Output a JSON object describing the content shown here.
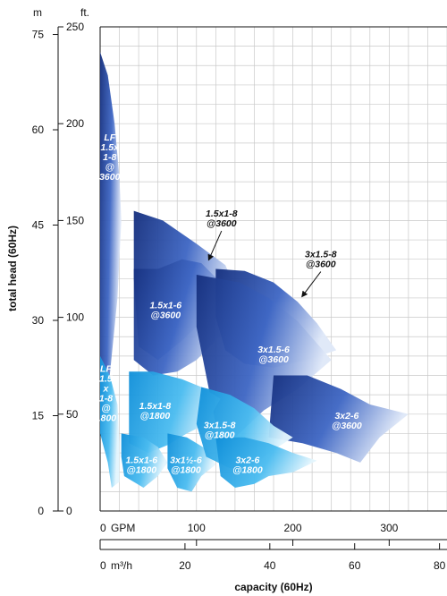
{
  "chart_data": {
    "type": "area",
    "title": "",
    "xlabel": "capacity (60Hz)",
    "ylabel": "total head (60Hz)",
    "left_axis_unit": "m",
    "right_axis_unit": "ft.",
    "flow_axis_unit_gpm": "GPM",
    "flow_axis_unit_m3h": "m³/h",
    "grid": true,
    "y_ft_ticks": [
      "0",
      "50",
      "100",
      "150",
      "200",
      "250"
    ],
    "y_m_ticks": [
      "0",
      "15",
      "30",
      "45",
      "60",
      "75"
    ],
    "x_gpm_ticks": [
      "0",
      "100",
      "200",
      "300"
    ],
    "x_m3h_ticks": [
      "0",
      "20",
      "40",
      "60",
      "80"
    ],
    "xlim_gpm": [
      0,
      360
    ],
    "ylim_ft": [
      0,
      250
    ],
    "colors": {
      "speed_3600": "#1a3a8f",
      "speed_1800": "#1aa3e8",
      "grid": "#c9c9c9"
    },
    "regions": [
      {
        "label": "LF 1.5x 1-8 @ 3600",
        "speed": 3600,
        "polygon": [
          [
            0,
            237
          ],
          [
            8,
            225
          ],
          [
            15,
            200
          ],
          [
            20,
            172
          ],
          [
            22,
            150
          ],
          [
            18,
            110
          ],
          [
            8,
            60
          ],
          [
            2,
            50
          ],
          [
            0,
            50
          ]
        ]
      },
      {
        "label": "1.5x1-8 @3600",
        "speed": 3600,
        "polygon": [
          [
            35,
            155
          ],
          [
            65,
            150
          ],
          [
            100,
            138
          ],
          [
            130,
            127
          ],
          [
            140,
            115
          ],
          [
            110,
            100
          ],
          [
            85,
            88
          ],
          [
            60,
            78
          ],
          [
            40,
            85
          ],
          [
            35,
            120
          ]
        ]
      },
      {
        "label": "1.5x1-6 @3600",
        "speed": 3600,
        "polygon": [
          [
            35,
            125
          ],
          [
            60,
            125
          ],
          [
            85,
            130
          ],
          [
            105,
            128
          ],
          [
            125,
            118
          ],
          [
            140,
            100
          ],
          [
            120,
            88
          ],
          [
            100,
            78
          ],
          [
            80,
            72
          ],
          [
            55,
            70
          ],
          [
            35,
            78
          ]
        ]
      },
      {
        "label": "3x1.5-8 @3600",
        "speed": 3600,
        "polygon": [
          [
            120,
            125
          ],
          [
            150,
            124
          ],
          [
            180,
            118
          ],
          [
            205,
            108
          ],
          [
            225,
            97
          ],
          [
            245,
            83
          ],
          [
            215,
            78
          ],
          [
            180,
            74
          ],
          [
            150,
            76
          ],
          [
            130,
            83
          ],
          [
            120,
            100
          ]
        ]
      },
      {
        "label": "3x1.5-6 @3600",
        "speed": 3600,
        "polygon": [
          [
            100,
            122
          ],
          [
            145,
            118
          ],
          [
            175,
            110
          ],
          [
            205,
            98
          ],
          [
            240,
            78
          ],
          [
            205,
            63
          ],
          [
            170,
            52
          ],
          [
            140,
            38
          ],
          [
            120,
            45
          ],
          [
            110,
            70
          ],
          [
            100,
            95
          ]
        ]
      },
      {
        "label": "3x2-6 @3600",
        "speed": 3600,
        "polygon": [
          [
            180,
            70
          ],
          [
            215,
            70
          ],
          [
            250,
            63
          ],
          [
            280,
            55
          ],
          [
            320,
            50
          ],
          [
            290,
            38
          ],
          [
            270,
            25
          ],
          [
            245,
            30
          ],
          [
            210,
            35
          ],
          [
            175,
            38
          ]
        ]
      },
      {
        "label": "LF 1.5 x 1-8 @ 1800",
        "speed": 1800,
        "polygon": [
          [
            0,
            80
          ],
          [
            10,
            70
          ],
          [
            18,
            55
          ],
          [
            20,
            35
          ],
          [
            20,
            15
          ],
          [
            12,
            12
          ],
          [
            8,
            25
          ],
          [
            0,
            40
          ]
        ]
      },
      {
        "label": "1.5x1-8 @1800",
        "speed": 1800,
        "polygon": [
          [
            30,
            72
          ],
          [
            55,
            72
          ],
          [
            85,
            68
          ],
          [
            105,
            64
          ],
          [
            125,
            58
          ],
          [
            110,
            45
          ],
          [
            90,
            40
          ],
          [
            70,
            34
          ],
          [
            50,
            30
          ],
          [
            30,
            35
          ]
        ]
      },
      {
        "label": "1.5x1-6 @1800",
        "speed": 1800,
        "polygon": [
          [
            22,
            40
          ],
          [
            45,
            38
          ],
          [
            60,
            33
          ],
          [
            70,
            25
          ],
          [
            60,
            18
          ],
          [
            45,
            12
          ],
          [
            25,
            18
          ],
          [
            22,
            28
          ]
        ]
      },
      {
        "label": "3x1½-6 @1800",
        "speed": 1800,
        "polygon": [
          [
            70,
            40
          ],
          [
            90,
            38
          ],
          [
            110,
            32
          ],
          [
            120,
            24
          ],
          [
            105,
            18
          ],
          [
            95,
            10
          ],
          [
            80,
            12
          ],
          [
            70,
            22
          ]
        ]
      },
      {
        "label": "3x1.5-8 @1800",
        "speed": 1800,
        "polygon": [
          [
            105,
            64
          ],
          [
            135,
            60
          ],
          [
            160,
            53
          ],
          [
            180,
            44
          ],
          [
            200,
            38
          ],
          [
            175,
            30
          ],
          [
            160,
            24
          ],
          [
            135,
            22
          ],
          [
            110,
            28
          ],
          [
            100,
            45
          ]
        ]
      },
      {
        "label": "3x2-6 @1800",
        "speed": 1800,
        "polygon": [
          [
            120,
            38
          ],
          [
            150,
            38
          ],
          [
            175,
            35
          ],
          [
            200,
            30
          ],
          [
            225,
            26
          ],
          [
            200,
            20
          ],
          [
            175,
            18
          ],
          [
            160,
            14
          ],
          [
            140,
            12
          ],
          [
            125,
            18
          ]
        ]
      }
    ],
    "region_labels": [
      {
        "lines": [
          "LF",
          "1.5x",
          "1-8",
          "@",
          "3600"
        ],
        "at": [
          10,
          183
        ]
      },
      {
        "lines": [
          "1.5x1-6",
          "@3600"
        ],
        "at": [
          68,
          104
        ]
      },
      {
        "lines": [
          "3x1.5-6",
          "@3600"
        ],
        "at": [
          180,
          81
        ]
      },
      {
        "lines": [
          "3x2-6",
          "@3600"
        ],
        "at": [
          256,
          47
        ]
      },
      {
        "lines": [
          "LF",
          "1.5",
          "x",
          "1-8",
          "@",
          "1800"
        ],
        "at": [
          6,
          61
        ]
      },
      {
        "lines": [
          "1.5x1-8",
          "@1800"
        ],
        "at": [
          57,
          52
        ]
      },
      {
        "lines": [
          "3x1.5-8",
          "@1800"
        ],
        "at": [
          124,
          42
        ]
      },
      {
        "lines": [
          "1.5x1-6",
          "@1800"
        ],
        "at": [
          43,
          24
        ]
      },
      {
        "lines": [
          "3x1½-6",
          "@1800"
        ],
        "at": [
          89,
          24
        ]
      },
      {
        "lines": [
          "3x2-6",
          "@1800"
        ],
        "at": [
          153,
          24
        ]
      }
    ],
    "callouts": [
      {
        "lines": [
          "1.5x1-8",
          "@3600"
        ],
        "at": [
          126,
          152
        ],
        "arrow_to": [
          113,
          130
        ]
      },
      {
        "lines": [
          "3x1.5-8",
          "@3600"
        ],
        "at": [
          229,
          131
        ],
        "arrow_to": [
          210,
          111
        ]
      }
    ]
  }
}
